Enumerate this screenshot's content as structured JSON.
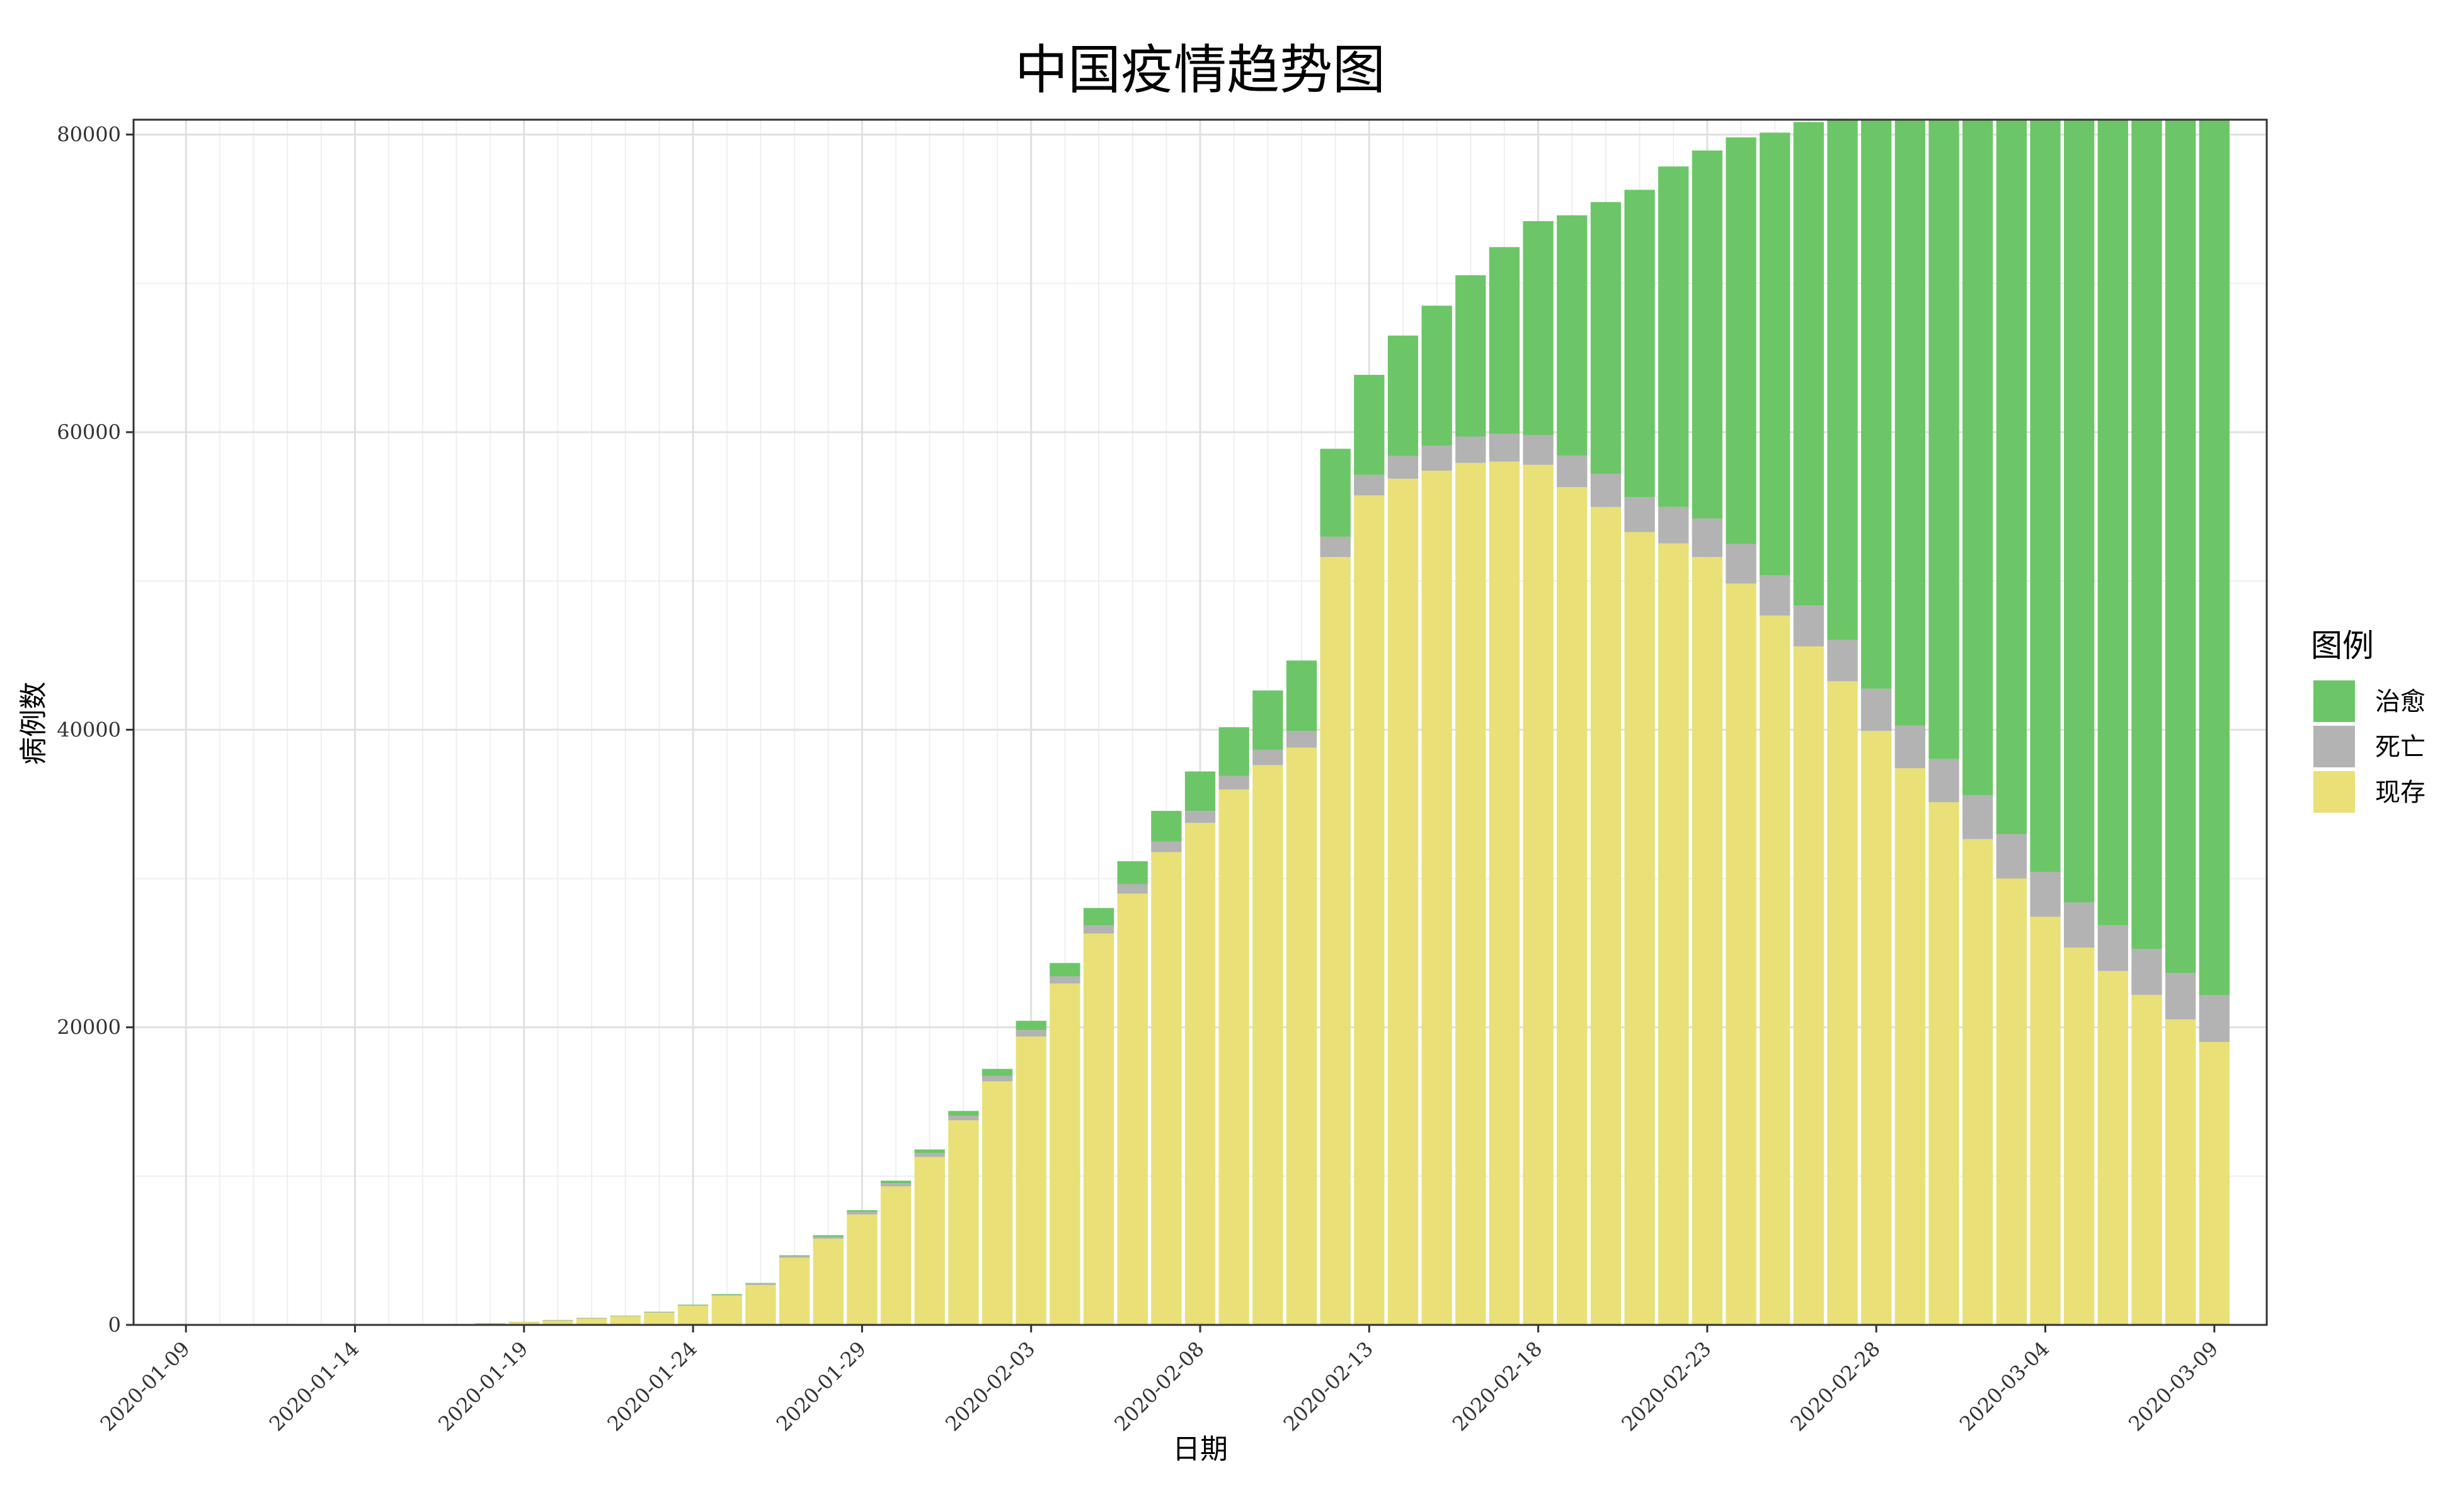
{
  "chart_data": {
    "type": "bar",
    "stacked": true,
    "title": "中国疫情趋势图",
    "xlabel": "日期",
    "ylabel": "病例数",
    "ylim": [
      0,
      81000
    ],
    "y_ticks": [
      0,
      20000,
      40000,
      60000,
      80000
    ],
    "x_tick_labels": [
      "2020-01-09",
      "2020-01-14",
      "2020-01-19",
      "2020-01-24",
      "2020-01-29",
      "2020-02-03",
      "2020-02-08",
      "2020-02-13",
      "2020-02-18",
      "2020-02-23",
      "2020-02-28",
      "2020-03-04",
      "2020-03-09"
    ],
    "grid": true,
    "legend": {
      "title": "图例",
      "position": "right",
      "entries": [
        "治愈",
        "死亡",
        "现存"
      ]
    },
    "colors": {
      "治愈": "#6cc667",
      "死亡": "#b3b3b3",
      "现存": "#e9e077"
    },
    "categories": [
      "2020-01-09",
      "2020-01-10",
      "2020-01-11",
      "2020-01-12",
      "2020-01-13",
      "2020-01-14",
      "2020-01-15",
      "2020-01-16",
      "2020-01-17",
      "2020-01-18",
      "2020-01-19",
      "2020-01-20",
      "2020-01-21",
      "2020-01-22",
      "2020-01-23",
      "2020-01-24",
      "2020-01-25",
      "2020-01-26",
      "2020-01-27",
      "2020-01-28",
      "2020-01-29",
      "2020-01-30",
      "2020-01-31",
      "2020-02-01",
      "2020-02-02",
      "2020-02-03",
      "2020-02-04",
      "2020-02-05",
      "2020-02-06",
      "2020-02-07",
      "2020-02-08",
      "2020-02-09",
      "2020-02-10",
      "2020-02-11",
      "2020-02-12",
      "2020-02-13",
      "2020-02-14",
      "2020-02-15",
      "2020-02-16",
      "2020-02-17",
      "2020-02-18",
      "2020-02-19",
      "2020-02-20",
      "2020-02-21",
      "2020-02-22",
      "2020-02-23",
      "2020-02-24",
      "2020-02-25",
      "2020-02-26",
      "2020-02-27",
      "2020-02-28",
      "2020-02-29",
      "2020-03-01",
      "2020-03-02",
      "2020-03-03",
      "2020-03-04",
      "2020-03-05",
      "2020-03-06",
      "2020-03-07",
      "2020-03-08",
      "2020-03-09"
    ],
    "series": [
      {
        "name": "现存",
        "values": [
          41,
          41,
          41,
          41,
          41,
          41,
          41,
          45,
          62,
          121,
          198,
          291,
          440,
          571,
          830,
          1287,
          1965,
          2684,
          4515,
          5794,
          7417,
          9308,
          11289,
          13748,
          16369,
          19381,
          22942,
          26302,
          28985,
          31774,
          33738,
          35982,
          37626,
          38800,
          51606,
          55748,
          56873,
          57416,
          57934,
          58016,
          57805,
          56303,
          54965,
          53284,
          52526,
          51606,
          49824,
          47672,
          45604,
          43258,
          39919,
          37414,
          35129,
          32652,
          30004,
          27433,
          25352,
          23784,
          22177,
          20533,
          19016
        ]
      },
      {
        "name": "死亡",
        "values": [
          1,
          1,
          1,
          1,
          1,
          1,
          2,
          2,
          2,
          3,
          3,
          6,
          9,
          17,
          25,
          41,
          56,
          80,
          106,
          132,
          170,
          213,
          259,
          304,
          361,
          425,
          490,
          563,
          636,
          722,
          811,
          908,
          1016,
          1113,
          1367,
          1380,
          1523,
          1665,
          1770,
          1868,
          2004,
          2118,
          2236,
          2345,
          2442,
          2592,
          2663,
          2715,
          2744,
          2788,
          2835,
          2870,
          2912,
          2943,
          2981,
          3012,
          3042,
          3070,
          3097,
          3119,
          3136
        ]
      },
      {
        "name": "治愈",
        "values": [
          0,
          0,
          0,
          0,
          0,
          0,
          0,
          0,
          0,
          0,
          0,
          25,
          25,
          28,
          34,
          38,
          49,
          51,
          60,
          103,
          124,
          171,
          243,
          328,
          475,
          632,
          892,
          1153,
          1540,
          2050,
          2649,
          3281,
          3996,
          4740,
          5911,
          6723,
          8096,
          9419,
          10844,
          12552,
          14376,
          16155,
          18264,
          20659,
          22888,
          24734,
          27323,
          29745,
          32495,
          36117,
          39002,
          41625,
          44462,
          47204,
          49856,
          52045,
          53726,
          55404,
          57065,
          58600,
          59897
        ]
      }
    ]
  }
}
